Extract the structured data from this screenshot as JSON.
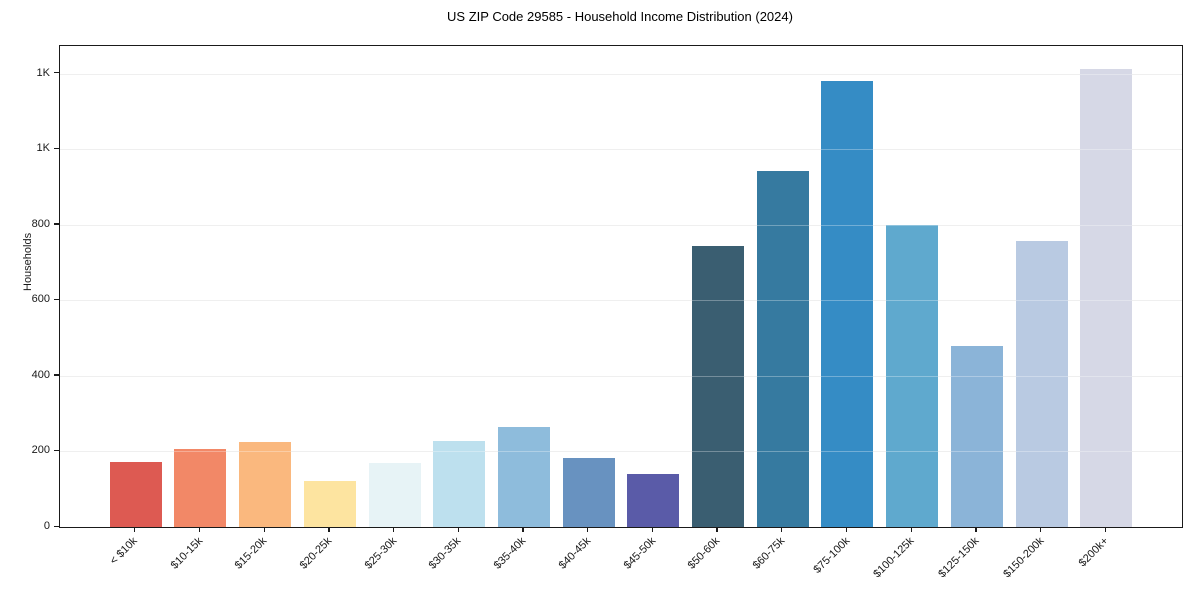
{
  "chart_data": {
    "type": "bar",
    "title": "US ZIP Code 29585 - Household Income Distribution (2024)",
    "xlabel": "",
    "ylabel": "Households",
    "categories": [
      "< $10k",
      "$10-15k",
      "$15-20k",
      "$20-25k",
      "$25-30k",
      "$30-35k",
      "$35-40k",
      "$40-45k",
      "$45-50k",
      "$50-60k",
      "$60-75k",
      "$75-100k",
      "$100-125k",
      "$125-150k",
      "$150-200k",
      "$200k+"
    ],
    "values": [
      172,
      207,
      225,
      122,
      170,
      228,
      265,
      183,
      140,
      745,
      941,
      1180,
      800,
      478,
      758,
      1212
    ],
    "bar_colors": [
      "#dd5a52",
      "#f28867",
      "#fab87e",
      "#fde4a0",
      "#e7f3f6",
      "#bde0ee",
      "#8ebcdc",
      "#6892c0",
      "#5a5ba8",
      "#3a5e71",
      "#367aa0",
      "#358cc5",
      "#5fa9ce",
      "#8bb4d8",
      "#b9cae2",
      "#d6d8e6"
    ],
    "ylim": [
      0,
      1273
    ],
    "yticks": {
      "values": [
        0,
        200,
        400,
        600,
        800,
        1000,
        1200
      ],
      "labels": [
        "0",
        "200",
        "400",
        "600",
        "800",
        "1K",
        "1K"
      ]
    },
    "grid": "horizontal",
    "legend": "none"
  },
  "style_colors": {
    "gridline": "#e9e9e9",
    "spine": "#1a1a1a",
    "text": "#191919",
    "background": "#ffffff"
  }
}
